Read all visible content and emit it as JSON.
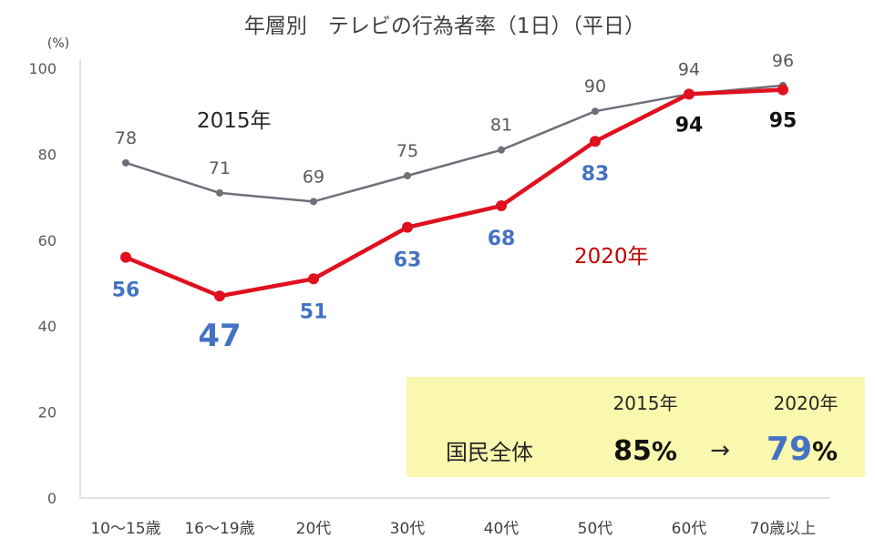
{
  "chart_data": {
    "type": "line",
    "title": "年層別　テレビの行為者率（1日）（平日）",
    "ylabel": "(%)",
    "ylim": [
      0,
      100
    ],
    "yticks": [
      0,
      20,
      40,
      60,
      80,
      100
    ],
    "grid": false,
    "categories": [
      "10～15歳",
      "16～19歳",
      "20代",
      "30代",
      "40代",
      "50代",
      "60代",
      "70歳以上"
    ],
    "series": [
      {
        "name": "2015年",
        "color": "#6E7079",
        "values": [
          78,
          71,
          69,
          75,
          81,
          90,
          94,
          96
        ]
      },
      {
        "name": "2020年",
        "color": "#E0101E",
        "values": [
          56,
          47,
          51,
          63,
          68,
          83,
          94,
          95
        ]
      }
    ],
    "labels_2015": [
      "78",
      "71",
      "69",
      "75",
      "81",
      "90",
      "94",
      "96"
    ],
    "labels_2020": [
      "56",
      "47",
      "51",
      "63",
      "68",
      "83",
      "94",
      "95"
    ],
    "annotation": {
      "background": "#FAF8AE",
      "year_from": "2015年",
      "year_to": "2020年",
      "label": "国民全体",
      "value_from": "85",
      "value_to": "79",
      "percent": "%",
      "arrow": "→"
    }
  }
}
